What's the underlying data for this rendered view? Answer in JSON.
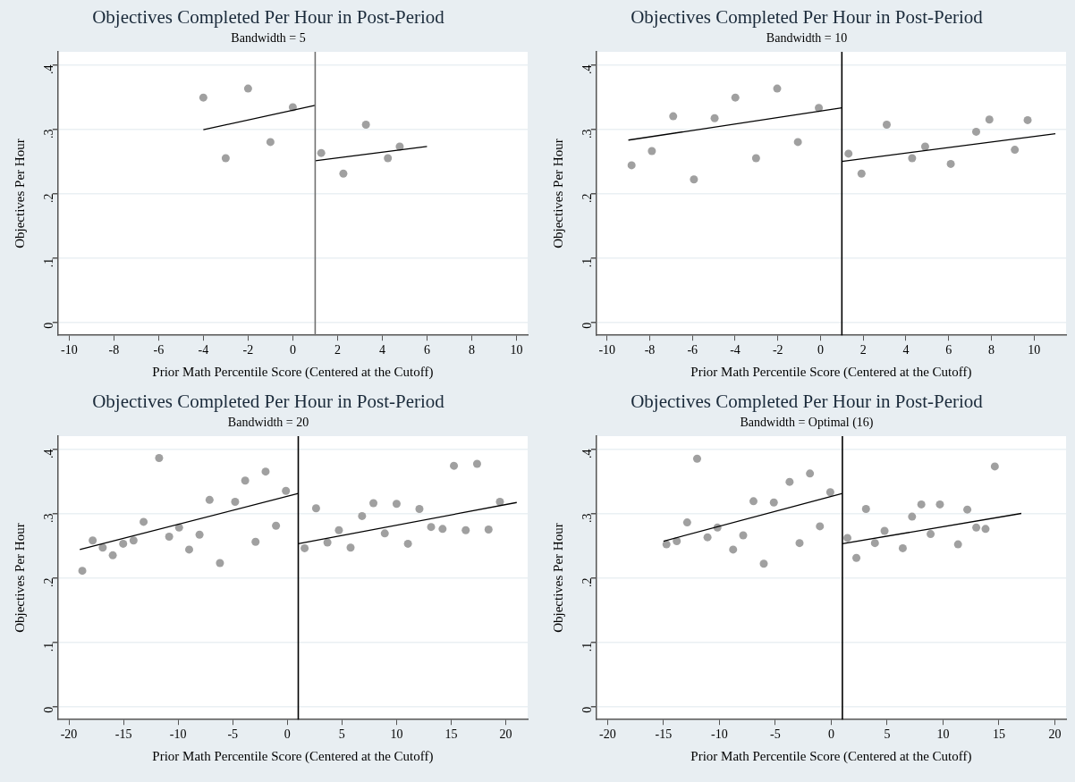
{
  "chart_data": [
    {
      "type": "scatter",
      "title": "Objectives Completed Per Hour in Post-Period",
      "subtitle": "Bandwidth = 5",
      "xlabel": "Prior Math Percentile Score (Centered at the Cutoff)",
      "ylabel": "Objectives Per Hour",
      "xlim": [
        -10.5,
        10.5
      ],
      "xticks": [
        -10,
        -8,
        -6,
        -4,
        -2,
        0,
        2,
        4,
        6,
        8,
        10
      ],
      "ylim": [
        -0.02,
        0.42
      ],
      "yticks": [
        {
          "value": 0,
          "label": "0"
        },
        {
          "value": 0.1,
          "label": ".1"
        },
        {
          "value": 0.2,
          "label": ".2"
        },
        {
          "value": 0.3,
          "label": ".3"
        },
        {
          "value": 0.4,
          "label": ".4"
        }
      ],
      "grid": "y",
      "legend": false,
      "marker": "circle",
      "ref_lines": [
        {
          "axis": "x",
          "value": 1,
          "color": "#707070"
        }
      ],
      "series": [
        {
          "color": "#a0a0a0",
          "x": [
            -4,
            -3,
            -2,
            -1,
            0,
            1.27,
            2.26,
            3.27,
            4.25,
            4.78
          ],
          "values": [
            0.349,
            0.255,
            0.363,
            0.28,
            0.334,
            0.263,
            0.231,
            0.307,
            0.255,
            0.273
          ]
        },
        {
          "type": "line",
          "marker": "none",
          "color": "#000000",
          "x": [
            -4,
            1
          ],
          "values": [
            0.299,
            0.337
          ]
        },
        {
          "type": "line",
          "marker": "none",
          "color": "#000000",
          "x": [
            1,
            6
          ],
          "values": [
            0.251,
            0.273
          ]
        }
      ]
    },
    {
      "type": "scatter",
      "title": "Objectives Completed Per Hour in Post-Period",
      "subtitle": "Bandwidth = 10",
      "xlabel": "Prior Math Percentile Score (Centered at the Cutoff)",
      "ylabel": "Objectives Per Hour",
      "xlim": [
        -10.5,
        11.5
      ],
      "xticks": [
        -10,
        -8,
        -6,
        -4,
        -2,
        0,
        2,
        4,
        6,
        8,
        10
      ],
      "ylim": [
        -0.02,
        0.42
      ],
      "yticks": [
        {
          "value": 0,
          "label": "0"
        },
        {
          "value": 0.1,
          "label": ".1"
        },
        {
          "value": 0.2,
          "label": ".2"
        },
        {
          "value": 0.3,
          "label": ".3"
        },
        {
          "value": 0.4,
          "label": ".4"
        }
      ],
      "grid": "y",
      "legend": false,
      "marker": "circle",
      "ref_lines": [
        {
          "axis": "x",
          "value": 1,
          "color": "#000000"
        }
      ],
      "series": [
        {
          "color": "#a0a0a0",
          "x": [
            -8.85,
            -7.9,
            -6.9,
            -5.93,
            -4.96,
            -3.99,
            -3.02,
            -2.03,
            -1.06,
            -0.08,
            1.31,
            1.92,
            3.1,
            4.29,
            4.9,
            6.1,
            7.29,
            7.91,
            9.1,
            9.7
          ],
          "values": [
            0.244,
            0.266,
            0.32,
            0.222,
            0.317,
            0.349,
            0.255,
            0.363,
            0.28,
            0.333,
            0.262,
            0.231,
            0.307,
            0.255,
            0.273,
            0.246,
            0.296,
            0.315,
            0.268,
            0.314
          ]
        },
        {
          "type": "line",
          "marker": "none",
          "color": "#000000",
          "x": [
            -9,
            1
          ],
          "values": [
            0.283,
            0.333
          ]
        },
        {
          "type": "line",
          "marker": "none",
          "color": "#000000",
          "x": [
            1,
            11
          ],
          "values": [
            0.25,
            0.293
          ]
        }
      ]
    },
    {
      "type": "scatter",
      "title": "Objectives Completed Per Hour in Post-Period",
      "subtitle": "Bandwidth = 20",
      "xlabel": "Prior Math Percentile Score (Centered at the Cutoff)",
      "ylabel": "Objectives Per Hour",
      "xlim": [
        -21,
        22
      ],
      "xticks": [
        -20,
        -15,
        -10,
        -5,
        0,
        5,
        10,
        15,
        20
      ],
      "ylim": [
        -0.02,
        0.42
      ],
      "yticks": [
        {
          "value": 0,
          "label": "0"
        },
        {
          "value": 0.1,
          "label": ".1"
        },
        {
          "value": 0.2,
          "label": ".2"
        },
        {
          "value": 0.3,
          "label": ".3"
        },
        {
          "value": 0.4,
          "label": ".4"
        }
      ],
      "grid": "y",
      "legend": false,
      "marker": "circle",
      "ref_lines": [
        {
          "axis": "x",
          "value": 1,
          "color": "#000000"
        }
      ],
      "series": [
        {
          "color": "#a0a0a0",
          "x": [
            -18.77,
            -17.82,
            -16.9,
            -15.98,
            -15.03,
            -14.08,
            -13.16,
            -11.74,
            -10.82,
            -9.91,
            -8.99,
            -8.04,
            -7.12,
            -6.17,
            -4.78,
            -3.86,
            -2.91,
            -1.99,
            -1.04,
            -0.13,
            1.58,
            2.63,
            3.67,
            4.72,
            5.79,
            6.84,
            7.88,
            8.92,
            10,
            11.04,
            12.09,
            13.16,
            14.21,
            15.25,
            16.33,
            17.37,
            18.42,
            19.46
          ],
          "values": [
            0.211,
            0.258,
            0.247,
            0.235,
            0.253,
            0.258,
            0.287,
            0.386,
            0.264,
            0.278,
            0.244,
            0.267,
            0.321,
            0.223,
            0.318,
            0.351,
            0.256,
            0.365,
            0.281,
            0.335,
            0.246,
            0.308,
            0.255,
            0.274,
            0.247,
            0.296,
            0.316,
            0.269,
            0.315,
            0.253,
            0.307,
            0.279,
            0.276,
            0.374,
            0.274,
            0.377,
            0.275,
            0.318
          ]
        },
        {
          "type": "line",
          "marker": "none",
          "color": "#000000",
          "x": [
            -19,
            1
          ],
          "values": [
            0.244,
            0.331
          ]
        },
        {
          "type": "line",
          "marker": "none",
          "color": "#000000",
          "x": [
            1,
            21
          ],
          "values": [
            0.253,
            0.317
          ]
        }
      ]
    },
    {
      "type": "scatter",
      "title": "Objectives Completed Per Hour in Post-Period",
      "subtitle": "Bandwidth = Optimal (16)",
      "xlabel": "Prior Math Percentile Score (Centered at the Cutoff)",
      "ylabel": "Objectives Per Hour",
      "xlim": [
        -21,
        21
      ],
      "xticks": [
        -20,
        -15,
        -10,
        -5,
        0,
        5,
        10,
        15,
        20
      ],
      "ylim": [
        -0.02,
        0.42
      ],
      "yticks": [
        {
          "value": 0,
          "label": "0"
        },
        {
          "value": 0.1,
          "label": ".1"
        },
        {
          "value": 0.2,
          "label": ".2"
        },
        {
          "value": 0.3,
          "label": ".3"
        },
        {
          "value": 0.4,
          "label": ".4"
        }
      ],
      "grid": "y",
      "legend": false,
      "marker": "circle",
      "ref_lines": [
        {
          "axis": "x",
          "value": 1,
          "color": "#000000"
        }
      ],
      "series": [
        {
          "color": "#a0a0a0",
          "x": [
            -14.73,
            -13.81,
            -12.88,
            -11.99,
            -11.06,
            -10.17,
            -8.77,
            -7.87,
            -6.95,
            -6.03,
            -5.13,
            -3.72,
            -2.83,
            -1.9,
            -1.01,
            -0.08,
            1.45,
            2.25,
            3.11,
            3.91,
            4.77,
            6.4,
            7.23,
            8.06,
            8.89,
            9.72,
            11.34,
            12.17,
            12.97,
            13.8,
            14.63
          ],
          "values": [
            0.252,
            0.257,
            0.286,
            0.385,
            0.263,
            0.278,
            0.244,
            0.266,
            0.319,
            0.222,
            0.317,
            0.349,
            0.254,
            0.362,
            0.28,
            0.333,
            0.262,
            0.231,
            0.307,
            0.254,
            0.273,
            0.246,
            0.295,
            0.314,
            0.268,
            0.314,
            0.252,
            0.306,
            0.278,
            0.276,
            0.373
          ]
        },
        {
          "type": "line",
          "marker": "none",
          "color": "#000000",
          "x": [
            -15,
            1
          ],
          "values": [
            0.257,
            0.331
          ]
        },
        {
          "type": "line",
          "marker": "none",
          "color": "#000000",
          "x": [
            1,
            17
          ],
          "values": [
            0.253,
            0.3
          ]
        }
      ]
    }
  ]
}
